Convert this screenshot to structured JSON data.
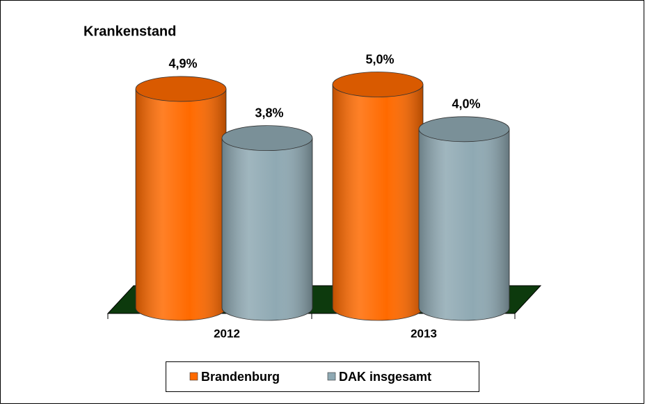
{
  "chart_data": {
    "type": "cylinder_bar",
    "title": "Krankenstand",
    "categories": [
      "2012",
      "2013"
    ],
    "series": [
      {
        "name": "Brandenburg",
        "color": "#ff6a00",
        "values": [
          4.9,
          5.0
        ],
        "value_labels": [
          "4,9%",
          "5,0%"
        ]
      },
      {
        "name": "DAK insgesamt",
        "color": "#8fa9b3",
        "values": [
          3.8,
          4.0
        ],
        "value_labels": [
          "3,8%",
          "4,0%"
        ]
      }
    ]
  }
}
